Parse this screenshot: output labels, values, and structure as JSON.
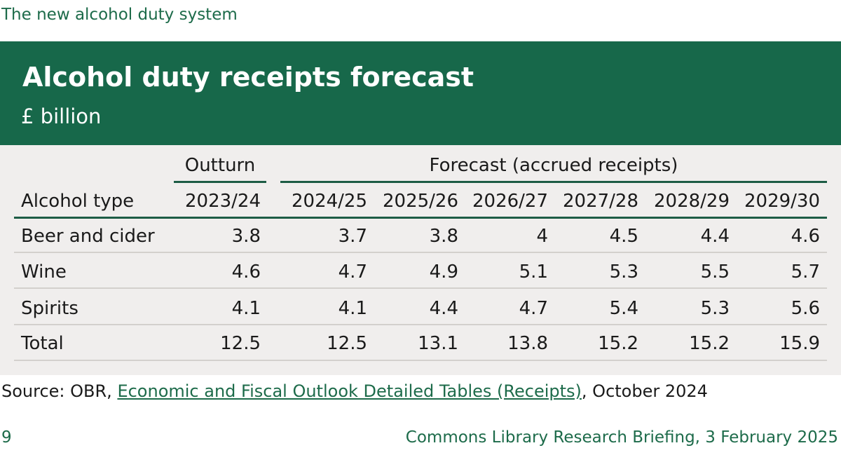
{
  "running_header": "The new alcohol duty system",
  "banner": {
    "title": "Alcohol duty receipts forecast",
    "subtitle": "£ billion"
  },
  "table": {
    "group_headers": {
      "outturn": "Outturn",
      "forecast": "Forecast (accrued receipts)"
    },
    "row_header": "Alcohol type",
    "columns": [
      "2023/24",
      "2024/25",
      "2025/26",
      "2026/27",
      "2027/28",
      "2028/29",
      "2029/30"
    ],
    "rows": [
      {
        "label": "Beer and cider",
        "values": [
          "3.8",
          "3.7",
          "3.8",
          "4",
          "4.5",
          "4.4",
          "4.6"
        ]
      },
      {
        "label": "Wine",
        "values": [
          "4.6",
          "4.7",
          "4.9",
          "5.1",
          "5.3",
          "5.5",
          "5.7"
        ]
      },
      {
        "label": "Spirits",
        "values": [
          "4.1",
          "4.1",
          "4.4",
          "4.7",
          "5.4",
          "5.3",
          "5.6"
        ]
      },
      {
        "label": "Total",
        "values": [
          "12.5",
          "12.5",
          "13.1",
          "13.8",
          "15.2",
          "15.2",
          "15.9"
        ]
      }
    ]
  },
  "source": {
    "prefix": "Source: OBR, ",
    "link_text": "Economic and Fiscal Outlook Detailed Tables (Receipts)",
    "suffix": ", October 2024"
  },
  "footer": {
    "page_number": "9",
    "publication": "Commons Library Research Briefing, 3 February 2025"
  },
  "colors": {
    "brand_green": "#17684a",
    "panel_bg": "#f0eeed",
    "rule_dark": "#1d5c45",
    "rule_light": "#d3d0cd"
  }
}
